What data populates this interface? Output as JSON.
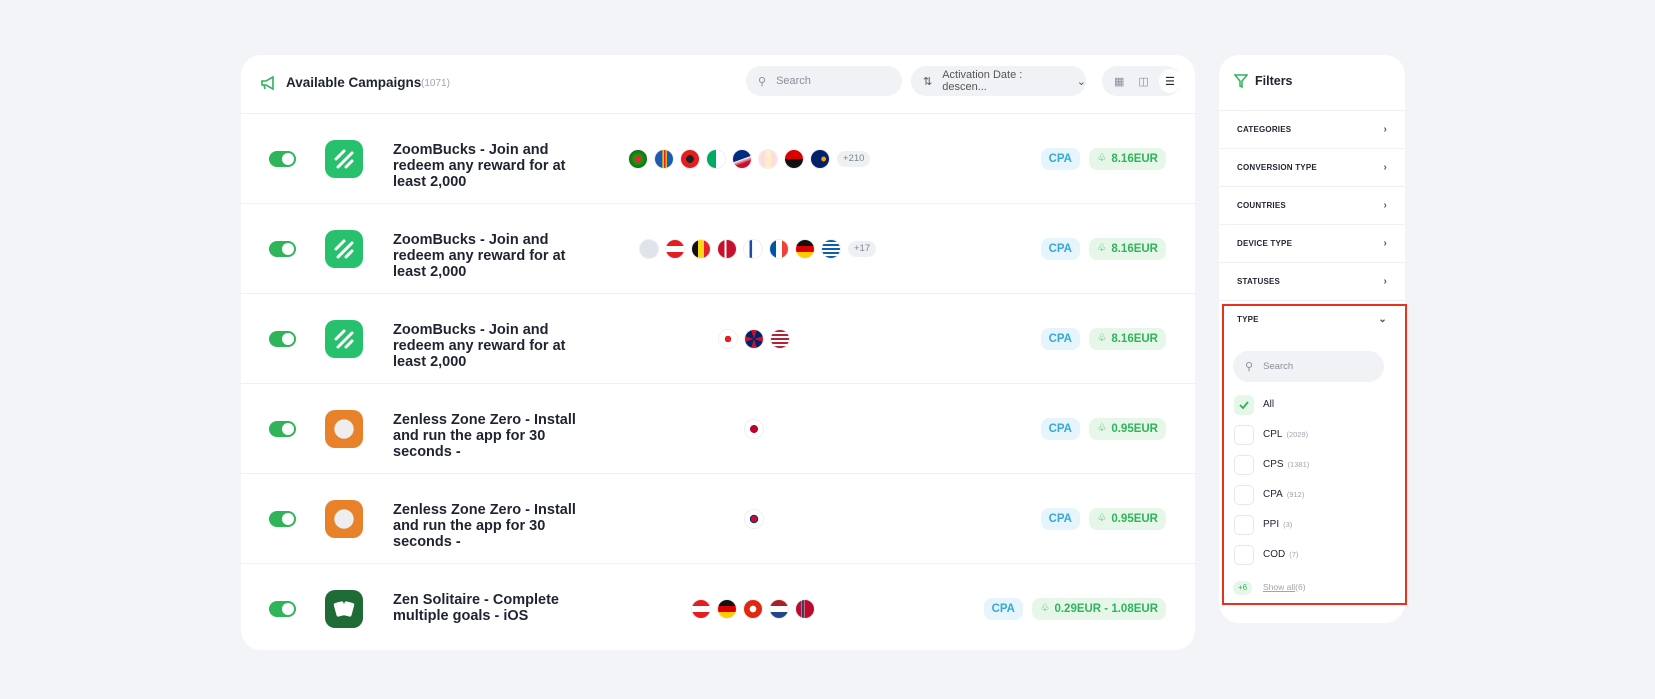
{
  "header": {
    "title": "Available Campaigns",
    "count": "(1071)",
    "search_placeholder": "Search",
    "sort_label": "Activation Date : descen..."
  },
  "campaigns": [
    {
      "name": "ZoomBucks - Join and redeem any reward for at least 2,000",
      "more_countries": "+210",
      "type": "CPA",
      "payout": "8.16EUR"
    },
    {
      "name": "ZoomBucks - Join and redeem any reward for at least 2,000",
      "more_countries": "+17",
      "type": "CPA",
      "payout": "8.16EUR"
    },
    {
      "name": "ZoomBucks - Join and redeem any reward for at least 2,000",
      "type": "CPA",
      "payout": "8.16EUR"
    },
    {
      "name": "Zenless Zone Zero - Install and run the app for 30 seconds -",
      "type": "CPA",
      "payout": "0.95EUR"
    },
    {
      "name": "Zenless Zone Zero - Install and run the app for 30 seconds -",
      "type": "CPA",
      "payout": "0.95EUR"
    },
    {
      "name": "Zen Solitaire - Complete multiple goals - iOS",
      "type": "CPA",
      "payout": "0.29EUR - 1.08EUR"
    }
  ],
  "filters": {
    "title": "Filters",
    "sections": [
      "CATEGORIES",
      "CONVERSION TYPE",
      "COUNTRIES",
      "DEVICE TYPE",
      "STATUSES",
      "TYPE"
    ],
    "type_filter": {
      "search_placeholder": "Search",
      "options": [
        {
          "label": "All"
        },
        {
          "label": "CPL",
          "count": "(2029)"
        },
        {
          "label": "CPS",
          "count": "(1381)"
        },
        {
          "label": "CPA",
          "count": "(912)"
        },
        {
          "label": "PPI",
          "count": "(3)"
        },
        {
          "label": "COD",
          "count": "(7)"
        }
      ],
      "more_badge": "+6",
      "show_all": "Show all",
      "show_all_count": "(6)"
    }
  }
}
